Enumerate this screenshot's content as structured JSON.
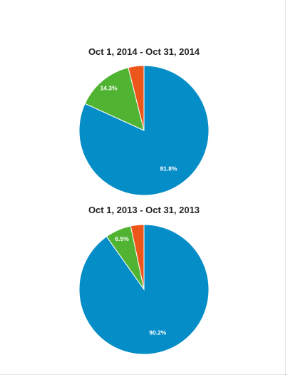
{
  "chart_data": [
    {
      "type": "pie",
      "title": "Oct 1, 2014 - Oct 31, 2014",
      "slices": [
        {
          "value": 81.8,
          "label": "81.8%",
          "color": "#058dc7"
        },
        {
          "value": 14.3,
          "label": "14.3%",
          "color": "#50b432"
        },
        {
          "value": 3.9,
          "label": "",
          "color": "#ed561b"
        }
      ]
    },
    {
      "type": "pie",
      "title": "Oct 1, 2013 - Oct 31, 2013",
      "slices": [
        {
          "value": 90.2,
          "label": "90.2%",
          "color": "#058dc7"
        },
        {
          "value": 6.5,
          "label": "6.5%",
          "color": "#50b432"
        },
        {
          "value": 3.3,
          "label": "",
          "color": "#ed561b"
        }
      ]
    }
  ]
}
